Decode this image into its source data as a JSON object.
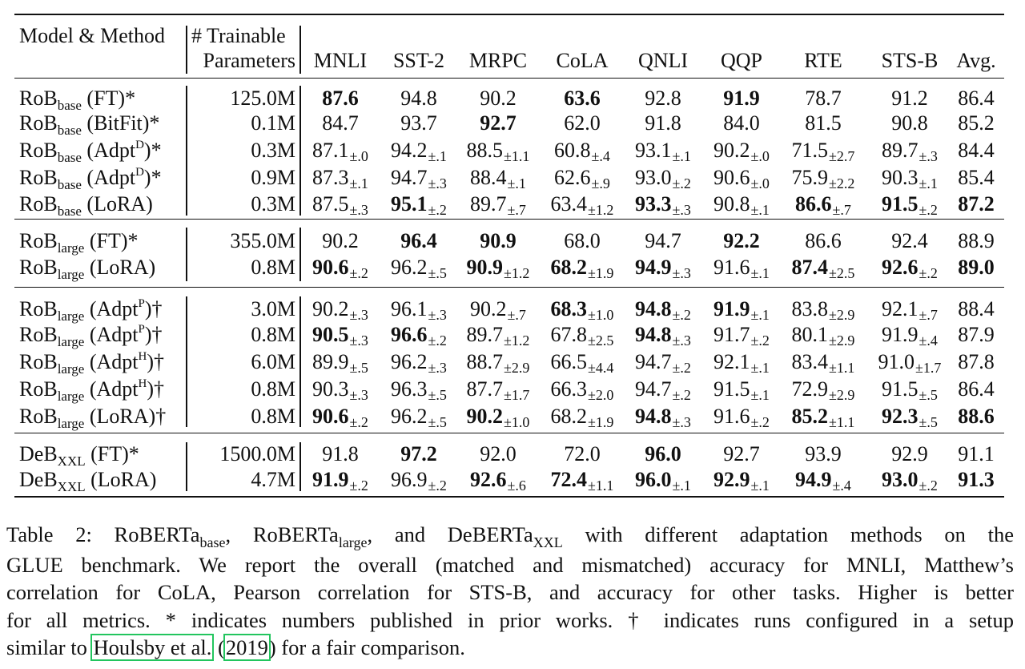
{
  "table": {
    "header": {
      "model_method": "Model & Method",
      "trainable_line1": "# Trainable",
      "trainable_line2": "Parameters",
      "tasks": [
        "MNLI",
        "SST-2",
        "MRPC",
        "CoLA",
        "QNLI",
        "QQP",
        "RTE",
        "STS-B",
        "Avg."
      ]
    },
    "groups": [
      {
        "rows": [
          {
            "model": "RoB",
            "size": "base",
            "method": " (FT)",
            "method_sup": "",
            "suffix": "*",
            "params": "125.0M",
            "cells": [
              {
                "v": "87.6",
                "b": true,
                "sd": ""
              },
              {
                "v": "94.8",
                "b": false,
                "sd": ""
              },
              {
                "v": "90.2",
                "b": false,
                "sd": ""
              },
              {
                "v": "63.6",
                "b": true,
                "sd": ""
              },
              {
                "v": "92.8",
                "b": false,
                "sd": ""
              },
              {
                "v": "91.9",
                "b": true,
                "sd": ""
              },
              {
                "v": "78.7",
                "b": false,
                "sd": ""
              },
              {
                "v": "91.2",
                "b": false,
                "sd": ""
              },
              {
                "v": "86.4",
                "b": false,
                "sd": ""
              }
            ]
          },
          {
            "model": "RoB",
            "size": "base",
            "method": " (BitFit)",
            "method_sup": "",
            "suffix": "*",
            "params": "0.1M",
            "cells": [
              {
                "v": "84.7",
                "b": false,
                "sd": ""
              },
              {
                "v": "93.7",
                "b": false,
                "sd": ""
              },
              {
                "v": "92.7",
                "b": true,
                "sd": ""
              },
              {
                "v": "62.0",
                "b": false,
                "sd": ""
              },
              {
                "v": "91.8",
                "b": false,
                "sd": ""
              },
              {
                "v": "84.0",
                "b": false,
                "sd": ""
              },
              {
                "v": "81.5",
                "b": false,
                "sd": ""
              },
              {
                "v": "90.8",
                "b": false,
                "sd": ""
              },
              {
                "v": "85.2",
                "b": false,
                "sd": ""
              }
            ]
          },
          {
            "model": "RoB",
            "size": "base",
            "method": " (Adpt",
            "method_sup": "D",
            "suffix": ")*",
            "params": "0.3M",
            "cells": [
              {
                "v": "87.1",
                "b": false,
                "sd": "±.0"
              },
              {
                "v": "94.2",
                "b": false,
                "sd": "±.1"
              },
              {
                "v": "88.5",
                "b": false,
                "sd": "±1.1"
              },
              {
                "v": "60.8",
                "b": false,
                "sd": "±.4"
              },
              {
                "v": "93.1",
                "b": false,
                "sd": "±.1"
              },
              {
                "v": "90.2",
                "b": false,
                "sd": "±.0"
              },
              {
                "v": "71.5",
                "b": false,
                "sd": "±2.7"
              },
              {
                "v": "89.7",
                "b": false,
                "sd": "±.3"
              },
              {
                "v": "84.4",
                "b": false,
                "sd": ""
              }
            ]
          },
          {
            "model": "RoB",
            "size": "base",
            "method": " (Adpt",
            "method_sup": "D",
            "suffix": ")*",
            "params": "0.9M",
            "cells": [
              {
                "v": "87.3",
                "b": false,
                "sd": "±.1"
              },
              {
                "v": "94.7",
                "b": false,
                "sd": "±.3"
              },
              {
                "v": "88.4",
                "b": false,
                "sd": "±.1"
              },
              {
                "v": "62.6",
                "b": false,
                "sd": "±.9"
              },
              {
                "v": "93.0",
                "b": false,
                "sd": "±.2"
              },
              {
                "v": "90.6",
                "b": false,
                "sd": "±.0"
              },
              {
                "v": "75.9",
                "b": false,
                "sd": "±2.2"
              },
              {
                "v": "90.3",
                "b": false,
                "sd": "±.1"
              },
              {
                "v": "85.4",
                "b": false,
                "sd": ""
              }
            ]
          },
          {
            "model": "RoB",
            "size": "base",
            "method": " (LoRA)",
            "method_sup": "",
            "suffix": "",
            "params": "0.3M",
            "cells": [
              {
                "v": "87.5",
                "b": false,
                "sd": "±.3"
              },
              {
                "v": "95.1",
                "b": true,
                "sd": "±.2"
              },
              {
                "v": "89.7",
                "b": false,
                "sd": "±.7"
              },
              {
                "v": "63.4",
                "b": false,
                "sd": "±1.2"
              },
              {
                "v": "93.3",
                "b": true,
                "sd": "±.3"
              },
              {
                "v": "90.8",
                "b": false,
                "sd": "±.1"
              },
              {
                "v": "86.6",
                "b": true,
                "sd": "±.7"
              },
              {
                "v": "91.5",
                "b": true,
                "sd": "±.2"
              },
              {
                "v": "87.2",
                "b": true,
                "sd": ""
              }
            ]
          }
        ]
      },
      {
        "rows": [
          {
            "model": "RoB",
            "size": "large",
            "method": " (FT)",
            "method_sup": "",
            "suffix": "*",
            "params": "355.0M",
            "cells": [
              {
                "v": "90.2",
                "b": false,
                "sd": ""
              },
              {
                "v": "96.4",
                "b": true,
                "sd": ""
              },
              {
                "v": "90.9",
                "b": true,
                "sd": ""
              },
              {
                "v": "68.0",
                "b": false,
                "sd": ""
              },
              {
                "v": "94.7",
                "b": false,
                "sd": ""
              },
              {
                "v": "92.2",
                "b": true,
                "sd": ""
              },
              {
                "v": "86.6",
                "b": false,
                "sd": ""
              },
              {
                "v": "92.4",
                "b": false,
                "sd": ""
              },
              {
                "v": "88.9",
                "b": false,
                "sd": ""
              }
            ]
          },
          {
            "model": "RoB",
            "size": "large",
            "method": " (LoRA)",
            "method_sup": "",
            "suffix": "",
            "params": "0.8M",
            "cells": [
              {
                "v": "90.6",
                "b": true,
                "sd": "±.2"
              },
              {
                "v": "96.2",
                "b": false,
                "sd": "±.5"
              },
              {
                "v": "90.9",
                "b": true,
                "sd": "±1.2"
              },
              {
                "v": "68.2",
                "b": true,
                "sd": "±1.9"
              },
              {
                "v": "94.9",
                "b": true,
                "sd": "±.3"
              },
              {
                "v": "91.6",
                "b": false,
                "sd": "±.1"
              },
              {
                "v": "87.4",
                "b": true,
                "sd": "±2.5"
              },
              {
                "v": "92.6",
                "b": true,
                "sd": "±.2"
              },
              {
                "v": "89.0",
                "b": true,
                "sd": ""
              }
            ]
          }
        ]
      },
      {
        "rows": [
          {
            "model": "RoB",
            "size": "large",
            "method": " (Adpt",
            "method_sup": "P",
            "suffix": ")†",
            "params": "3.0M",
            "cells": [
              {
                "v": "90.2",
                "b": false,
                "sd": "±.3"
              },
              {
                "v": "96.1",
                "b": false,
                "sd": "±.3"
              },
              {
                "v": "90.2",
                "b": false,
                "sd": "±.7"
              },
              {
                "v": "68.3",
                "b": true,
                "sd": "±1.0"
              },
              {
                "v": "94.8",
                "b": true,
                "sd": "±.2"
              },
              {
                "v": "91.9",
                "b": true,
                "sd": "±.1"
              },
              {
                "v": "83.8",
                "b": false,
                "sd": "±2.9"
              },
              {
                "v": "92.1",
                "b": false,
                "sd": "±.7"
              },
              {
                "v": "88.4",
                "b": false,
                "sd": ""
              }
            ]
          },
          {
            "model": "RoB",
            "size": "large",
            "method": " (Adpt",
            "method_sup": "P",
            "suffix": ")†",
            "params": "0.8M",
            "cells": [
              {
                "v": "90.5",
                "b": true,
                "sd": "±.3"
              },
              {
                "v": "96.6",
                "b": true,
                "sd": "±.2"
              },
              {
                "v": "89.7",
                "b": false,
                "sd": "±1.2"
              },
              {
                "v": "67.8",
                "b": false,
                "sd": "±2.5"
              },
              {
                "v": "94.8",
                "b": true,
                "sd": "±.3"
              },
              {
                "v": "91.7",
                "b": false,
                "sd": "±.2"
              },
              {
                "v": "80.1",
                "b": false,
                "sd": "±2.9"
              },
              {
                "v": "91.9",
                "b": false,
                "sd": "±.4"
              },
              {
                "v": "87.9",
                "b": false,
                "sd": ""
              }
            ]
          },
          {
            "model": "RoB",
            "size": "large",
            "method": " (Adpt",
            "method_sup": "H",
            "suffix": ")†",
            "params": "6.0M",
            "cells": [
              {
                "v": "89.9",
                "b": false,
                "sd": "±.5"
              },
              {
                "v": "96.2",
                "b": false,
                "sd": "±.3"
              },
              {
                "v": "88.7",
                "b": false,
                "sd": "±2.9"
              },
              {
                "v": "66.5",
                "b": false,
                "sd": "±4.4"
              },
              {
                "v": "94.7",
                "b": false,
                "sd": "±.2"
              },
              {
                "v": "92.1",
                "b": false,
                "sd": "±.1"
              },
              {
                "v": "83.4",
                "b": false,
                "sd": "±1.1"
              },
              {
                "v": "91.0",
                "b": false,
                "sd": "±1.7"
              },
              {
                "v": "87.8",
                "b": false,
                "sd": ""
              }
            ]
          },
          {
            "model": "RoB",
            "size": "large",
            "method": " (Adpt",
            "method_sup": "H",
            "suffix": ")†",
            "params": "0.8M",
            "cells": [
              {
                "v": "90.3",
                "b": false,
                "sd": "±.3"
              },
              {
                "v": "96.3",
                "b": false,
                "sd": "±.5"
              },
              {
                "v": "87.7",
                "b": false,
                "sd": "±1.7"
              },
              {
                "v": "66.3",
                "b": false,
                "sd": "±2.0"
              },
              {
                "v": "94.7",
                "b": false,
                "sd": "±.2"
              },
              {
                "v": "91.5",
                "b": false,
                "sd": "±.1"
              },
              {
                "v": "72.9",
                "b": false,
                "sd": "±2.9"
              },
              {
                "v": "91.5",
                "b": false,
                "sd": "±.5"
              },
              {
                "v": "86.4",
                "b": false,
                "sd": ""
              }
            ]
          },
          {
            "model": "RoB",
            "size": "large",
            "method": " (LoRA)",
            "method_sup": "",
            "suffix": "†",
            "params": "0.8M",
            "cells": [
              {
                "v": "90.6",
                "b": true,
                "sd": "±.2"
              },
              {
                "v": "96.2",
                "b": false,
                "sd": "±.5"
              },
              {
                "v": "90.2",
                "b": true,
                "sd": "±1.0"
              },
              {
                "v": "68.2",
                "b": false,
                "sd": "±1.9"
              },
              {
                "v": "94.8",
                "b": true,
                "sd": "±.3"
              },
              {
                "v": "91.6",
                "b": false,
                "sd": "±.2"
              },
              {
                "v": "85.2",
                "b": true,
                "sd": "±1.1"
              },
              {
                "v": "92.3",
                "b": true,
                "sd": "±.5"
              },
              {
                "v": "88.6",
                "b": true,
                "sd": ""
              }
            ]
          }
        ]
      },
      {
        "rows": [
          {
            "model": "DeB",
            "size": "XXL",
            "method": " (FT)",
            "method_sup": "",
            "suffix": "*",
            "params": "1500.0M",
            "cells": [
              {
                "v": "91.8",
                "b": false,
                "sd": ""
              },
              {
                "v": "97.2",
                "b": true,
                "sd": ""
              },
              {
                "v": "92.0",
                "b": false,
                "sd": ""
              },
              {
                "v": "72.0",
                "b": false,
                "sd": ""
              },
              {
                "v": "96.0",
                "b": true,
                "sd": ""
              },
              {
                "v": "92.7",
                "b": false,
                "sd": ""
              },
              {
                "v": "93.9",
                "b": false,
                "sd": ""
              },
              {
                "v": "92.9",
                "b": false,
                "sd": ""
              },
              {
                "v": "91.1",
                "b": false,
                "sd": ""
              }
            ]
          },
          {
            "model": "DeB",
            "size": "XXL",
            "method": " (LoRA)",
            "method_sup": "",
            "suffix": "",
            "params": "4.7M",
            "cells": [
              {
                "v": "91.9",
                "b": true,
                "sd": "±.2"
              },
              {
                "v": "96.9",
                "b": false,
                "sd": "±.2"
              },
              {
                "v": "92.6",
                "b": true,
                "sd": "±.6"
              },
              {
                "v": "72.4",
                "b": true,
                "sd": "±1.1"
              },
              {
                "v": "96.0",
                "b": true,
                "sd": "±.1"
              },
              {
                "v": "92.9",
                "b": true,
                "sd": "±.1"
              },
              {
                "v": "94.9",
                "b": true,
                "sd": "±.4"
              },
              {
                "v": "93.0",
                "b": true,
                "sd": "±.2"
              },
              {
                "v": "91.3",
                "b": true,
                "sd": ""
              }
            ]
          }
        ]
      }
    ]
  },
  "caption": {
    "l1_a": "Table 2: RoBERTa",
    "l1_sub1": "base",
    "l1_b": ", RoBERTa",
    "l1_sub2": "large",
    "l1_c": ", and DeBERTa",
    "l1_sub3": "XXL",
    "l1_d": " with different adaptation methods on the",
    "l2": "GLUE benchmark. We report the overall (matched and mismatched) accuracy for MNLI, Matthew’s",
    "l3": "correlation for CoLA, Pearson correlation for STS-B, and accuracy for other tasks. Higher is better",
    "l4": "for all metrics. * indicates numbers published in prior works. † indicates runs configured in a setup",
    "l5_a": "similar to ",
    "l5_cite_author": "Houlsby et al.",
    "l5_b": " (",
    "l5_cite_year": "2019",
    "l5_c": ") for a fair comparison."
  }
}
